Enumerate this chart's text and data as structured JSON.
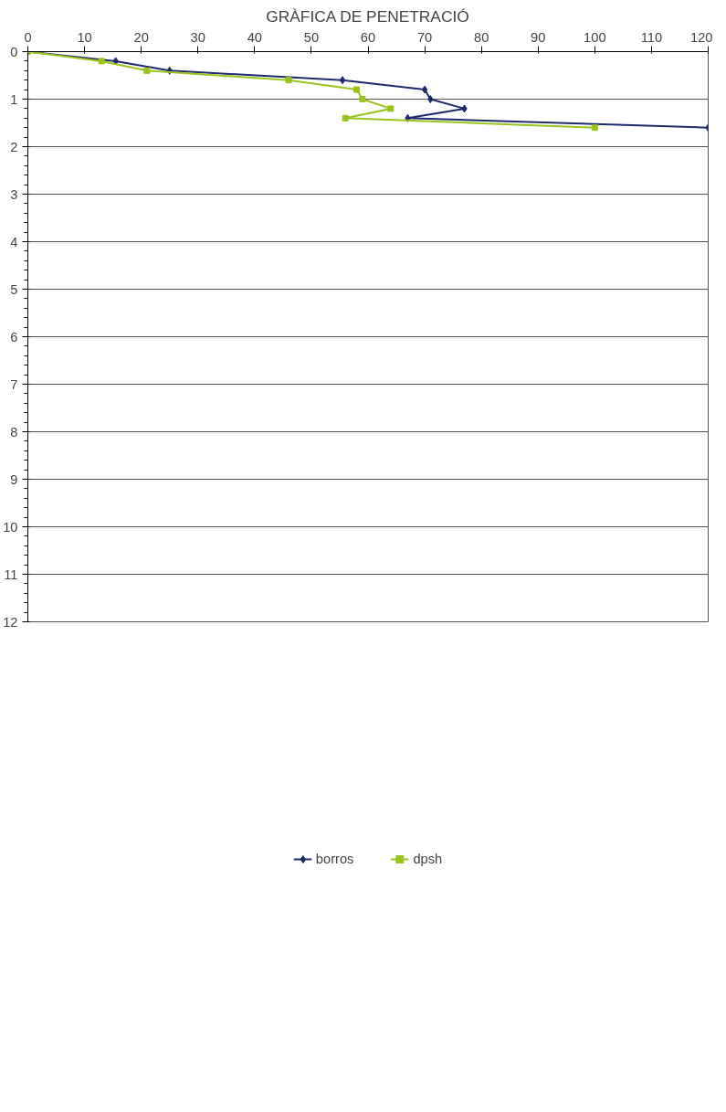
{
  "chart_data": {
    "type": "line",
    "title": "GRÀFICA DE PENETRACIÓ",
    "xlim": [
      0,
      120
    ],
    "xticks": [
      0,
      10,
      20,
      30,
      40,
      50,
      60,
      70,
      80,
      90,
      100,
      110,
      120
    ],
    "ylim": [
      12,
      0
    ],
    "yticks": [
      0,
      1,
      2,
      3,
      4,
      5,
      6,
      7,
      8,
      9,
      10,
      11,
      12
    ],
    "grid": "y",
    "legend": "bottom",
    "series": [
      {
        "name": "borros",
        "color": "#1f2a6e",
        "marker": "diamond",
        "x": [
          0,
          15.5,
          25,
          55.5,
          70,
          71,
          77,
          67,
          120
        ],
        "values": [
          0,
          0.2,
          0.4,
          0.6,
          0.8,
          1.0,
          1.2,
          1.4,
          1.6
        ]
      },
      {
        "name": "dpsh",
        "color": "#9ac31c",
        "marker": "square",
        "x": [
          0,
          13,
          21,
          46,
          58,
          59,
          64,
          56,
          100
        ],
        "values": [
          0,
          0.2,
          0.4,
          0.6,
          0.8,
          1.0,
          1.2,
          1.4,
          1.6
        ]
      }
    ]
  }
}
